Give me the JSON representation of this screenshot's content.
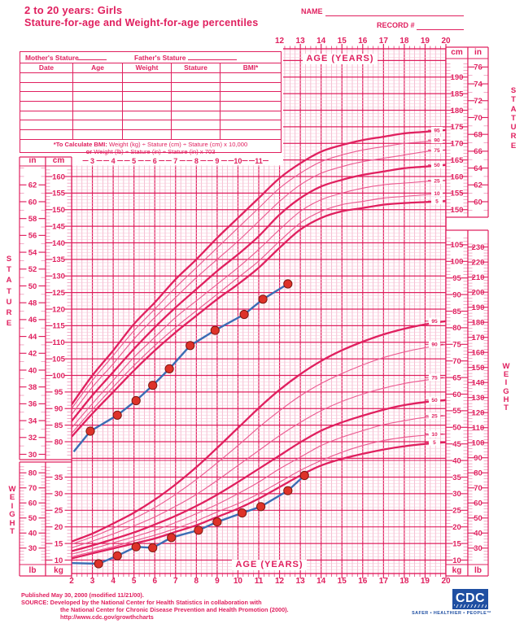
{
  "header": {
    "title_line1": "2 to 20 years: Girls",
    "title_line2": "Stature-for-age and Weight-for-age percentiles",
    "name_label": "NAME",
    "record_label": "RECORD #"
  },
  "table": {
    "mother_label": "Mother's Stature",
    "father_label": "Father's Stature",
    "columns": [
      "Date",
      "Age",
      "Weight",
      "Stature",
      "BMI*"
    ],
    "empty_rows": 7
  },
  "bmi_note": {
    "bold_prefix": "*To Calculate BMI:",
    "line1_rest": " Weight (kg) ÷ Stature (cm) ÷ Stature (cm) x 10,000",
    "line2_bold": "or",
    "line2_rest": " Weight (lb) ÷ Stature (in) ÷ Stature (in) x 703"
  },
  "axis": {
    "age_title": "AGE (YEARS)",
    "top_ages": [
      12,
      13,
      14,
      15,
      16,
      17,
      18,
      19,
      20
    ],
    "bottom_ages": [
      2,
      3,
      4,
      5,
      6,
      7,
      8,
      9,
      10,
      11,
      12,
      13,
      14,
      15,
      16,
      17,
      18,
      19,
      20
    ],
    "inner_ages": [
      3,
      4,
      5,
      6,
      7,
      8,
      9,
      10,
      11
    ]
  },
  "scales": {
    "units": {
      "in": "in",
      "cm": "cm",
      "lb": "lb",
      "kg": "kg"
    },
    "stature_left_in": [
      62,
      60,
      58,
      56,
      54,
      52,
      50,
      48,
      46,
      44,
      42,
      40,
      38,
      36,
      34,
      32,
      30
    ],
    "stature_left_cm": [
      160,
      155,
      150,
      145,
      140,
      135,
      130,
      125,
      120,
      115,
      110,
      105,
      100,
      95,
      90,
      85,
      80
    ],
    "stature_right_cm": [
      190,
      185,
      180,
      175,
      170,
      165,
      160,
      155,
      150
    ],
    "stature_right_in": [
      76,
      74,
      72,
      70,
      68,
      66,
      64,
      62,
      60
    ],
    "weight_right_kg": [
      105,
      100,
      95,
      90,
      85,
      80,
      75,
      70,
      65,
      60,
      55,
      50,
      45,
      40,
      35,
      30,
      25,
      20,
      15,
      10
    ],
    "weight_right_lb": [
      230,
      220,
      210,
      200,
      190,
      180,
      170,
      160,
      150,
      140,
      130,
      120,
      110,
      100,
      90,
      80,
      70,
      60,
      50,
      40,
      30
    ],
    "weight_left_lb": [
      80,
      70,
      60,
      50,
      40,
      30
    ],
    "weight_left_kg": [
      35,
      30,
      25,
      20,
      15,
      10
    ]
  },
  "titles": {
    "stature": "STATURE",
    "weight": "WEIGHT"
  },
  "chart_data": {
    "type": "line",
    "ages": [
      2,
      3,
      4,
      5,
      6,
      7,
      8,
      9,
      10,
      11,
      12,
      13,
      14,
      15,
      16,
      17,
      18,
      19,
      20
    ],
    "stature": {
      "ylabel": "Stature (cm)",
      "series": [
        {
          "name": "95",
          "values": [
            91.2,
            100,
            107.5,
            115.5,
            122,
            129,
            135,
            141.5,
            147.5,
            153.5,
            159.5,
            164,
            167.5,
            169.5,
            171,
            172,
            173,
            173.5,
            174
          ]
        },
        {
          "name": "90",
          "values": [
            90,
            98.5,
            106,
            113.5,
            120,
            126.5,
            132.5,
            138.5,
            144.5,
            150.5,
            156.5,
            161,
            164.5,
            166.5,
            168,
            169,
            170,
            170.5,
            171
          ]
        },
        {
          "name": "75",
          "values": [
            88.2,
            96.5,
            103.5,
            111,
            117.5,
            123.5,
            129.5,
            135,
            140.5,
            146.5,
            152.5,
            157.5,
            161,
            163,
            164.5,
            165.5,
            166.5,
            167.5,
            168
          ]
        },
        {
          "name": "50",
          "values": [
            86.2,
            94,
            101,
            108,
            114.5,
            120.5,
            126,
            131.5,
            136.5,
            142,
            148.5,
            153.5,
            157,
            159,
            160.5,
            161.5,
            162.5,
            163,
            163.5
          ]
        },
        {
          "name": "25",
          "values": [
            84.2,
            91.5,
            98.5,
            105.5,
            111.5,
            117.5,
            122.5,
            127.5,
            132.5,
            138,
            144,
            149.5,
            153,
            155,
            156.5,
            157.5,
            158,
            158.5,
            158.8
          ]
        },
        {
          "name": "10",
          "values": [
            82.5,
            89.7,
            96.5,
            103,
            109,
            114.5,
            119.5,
            124.5,
            129.5,
            134.5,
            140.5,
            146,
            149.5,
            151.5,
            152.5,
            153.5,
            154,
            154.5,
            155
          ]
        },
        {
          "name": "5",
          "values": [
            81.5,
            88.5,
            95,
            101.5,
            107.5,
            113,
            118,
            123,
            127.5,
            132.5,
            138.5,
            144,
            147.5,
            149.5,
            150.5,
            151.5,
            152,
            152.3,
            152.6
          ]
        }
      ]
    },
    "weight": {
      "ylabel": "Weight (kg)",
      "series": [
        {
          "name": "95",
          "values": [
            15.6,
            18,
            21,
            24.3,
            28.2,
            32.8,
            38,
            43.8,
            49.8,
            55.8,
            61.3,
            66,
            70,
            73.2,
            75.8,
            78,
            79.7,
            81,
            82
          ]
        },
        {
          "name": "90",
          "values": [
            14.8,
            17,
            19.6,
            22.5,
            25.8,
            29.8,
            34.3,
            39.3,
            44.5,
            50,
            55,
            59.5,
            63.2,
            66.2,
            68.8,
            71,
            72.7,
            74,
            75
          ]
        },
        {
          "name": "75",
          "values": [
            13.7,
            15.7,
            17.9,
            20.3,
            23,
            26.2,
            29.8,
            34,
            38.5,
            43,
            47.5,
            51.5,
            55,
            57.8,
            60,
            61.8,
            63.2,
            64.2,
            65
          ]
        },
        {
          "name": "50",
          "values": [
            12.7,
            14.4,
            16.3,
            18.3,
            20.7,
            23.3,
            26.3,
            29.7,
            33.5,
            37.5,
            41.5,
            45.5,
            49,
            51.5,
            53.5,
            55.3,
            56.7,
            57.6,
            58.2
          ]
        },
        {
          "name": "25",
          "values": [
            11.8,
            13.4,
            15.2,
            17,
            19,
            21.3,
            24,
            26.8,
            30,
            33.5,
            37.5,
            41,
            44.5,
            47,
            49,
            50.8,
            52,
            53,
            53.5
          ]
        },
        {
          "name": "10",
          "values": [
            11,
            12.5,
            14,
            15.8,
            17.5,
            19.5,
            21.8,
            24.5,
            27,
            30,
            33.5,
            37,
            40,
            42.5,
            44.5,
            46,
            47,
            47.6,
            48
          ]
        },
        {
          "name": "5",
          "values": [
            10.5,
            12,
            13.5,
            15,
            16.5,
            18.5,
            20.5,
            23,
            25.5,
            28.5,
            32,
            35.5,
            38.5,
            40.5,
            42,
            43.3,
            44.3,
            45,
            45.5
          ]
        }
      ]
    },
    "patient": {
      "stature_points": {
        "line_start": [
          2.1,
          77.0
        ],
        "points": [
          [
            2.9,
            83.2
          ],
          [
            4.2,
            88.0
          ],
          [
            5.1,
            92.4
          ],
          [
            5.9,
            97.0
          ],
          [
            6.7,
            102.0
          ],
          [
            7.7,
            109.0
          ],
          [
            8.9,
            113.6
          ],
          [
            10.3,
            118.4
          ],
          [
            11.2,
            123.0
          ],
          [
            12.4,
            127.6
          ]
        ]
      },
      "weight_points": {
        "line_start": [
          2.0,
          9.1
        ],
        "points": [
          [
            3.3,
            8.9
          ],
          [
            4.2,
            11.3
          ],
          [
            5.1,
            14.0
          ],
          [
            5.9,
            13.7
          ],
          [
            6.8,
            16.8
          ],
          [
            8.1,
            19.0
          ],
          [
            9.0,
            21.5
          ],
          [
            10.2,
            24.2
          ],
          [
            11.1,
            26.1
          ],
          [
            12.4,
            30.9
          ],
          [
            13.2,
            35.5
          ]
        ]
      }
    }
  },
  "footer": {
    "published": "Published May 30, 2000 (modified 11/21/00).",
    "source_line1": "SOURCE: Developed by the National Center for Health Statistics in collaboration with",
    "source_line2": "the National Center for Chronic Disease Prevention and Health Promotion (2000).",
    "url": "http://www.cdc.gov/growthcharts"
  },
  "cdc": {
    "logo_text": "CDC",
    "tagline": "SAFER • HEALTHIER • PEOPLE™"
  },
  "colors": {
    "ink": "#E0205F",
    "grid_minor_h": "#F9C9DA",
    "grid_minor_v": "#F09CBB",
    "curve_light": "#EC5C92",
    "patient_line": "#3B6CB4",
    "patient_point": "#DE3229",
    "cdc_blue": "#1F4FA2"
  }
}
